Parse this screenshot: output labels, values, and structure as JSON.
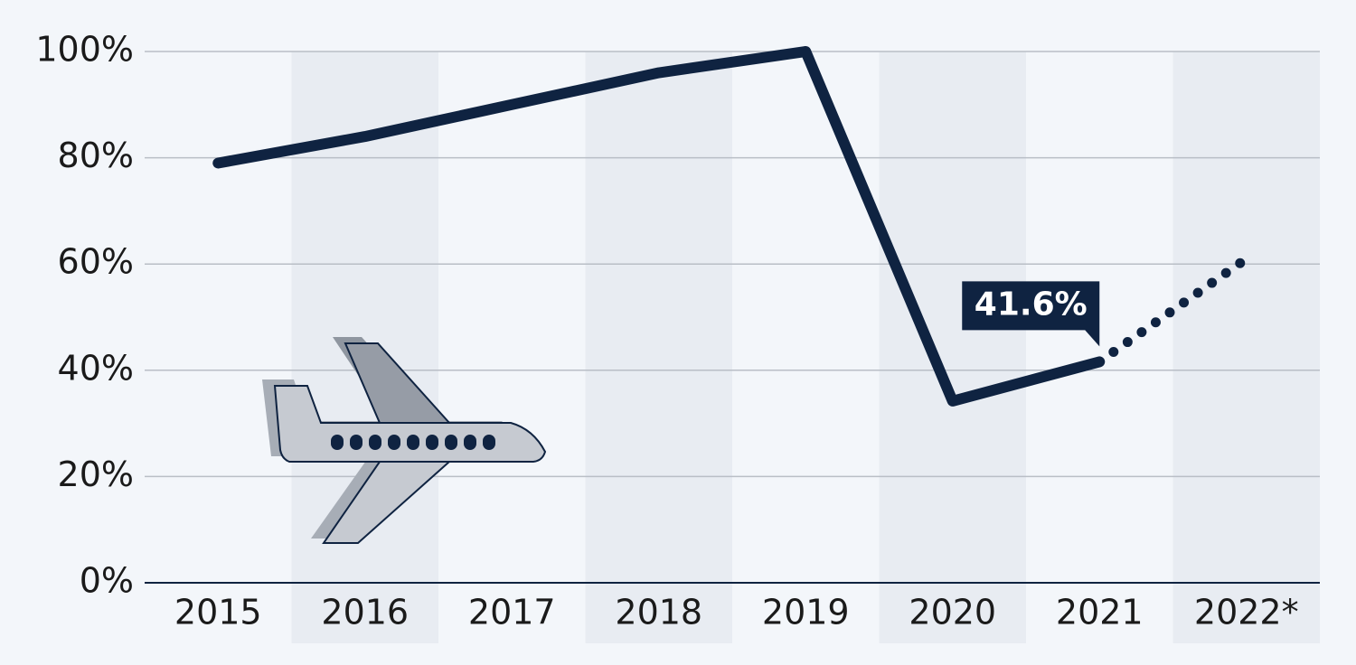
{
  "chart_data": {
    "type": "line",
    "categories": [
      "2015",
      "2016",
      "2017",
      "2018",
      "2019",
      "2020",
      "2021",
      "2022*"
    ],
    "series": [
      {
        "color": "#0f2341",
        "style": "solid",
        "values": [
          79,
          84,
          90,
          96,
          100,
          34.2,
          41.6,
          null
        ],
        "value_labels": [
          null,
          null,
          null,
          null,
          null,
          null,
          "41.6%",
          null
        ]
      },
      {
        "color": "#0f2341",
        "style": "dotted",
        "values": [
          null,
          null,
          null,
          null,
          null,
          null,
          41.6,
          61
        ]
      }
    ],
    "ylim": [
      0,
      100
    ],
    "yticks": [
      {
        "value": 0,
        "label": "0%"
      },
      {
        "value": 20,
        "label": "20%"
      },
      {
        "value": 40,
        "label": "40%"
      },
      {
        "value": 60,
        "label": "60%"
      },
      {
        "value": 80,
        "label": "80%"
      },
      {
        "value": 100,
        "label": "100%"
      }
    ],
    "grid": true
  }
}
